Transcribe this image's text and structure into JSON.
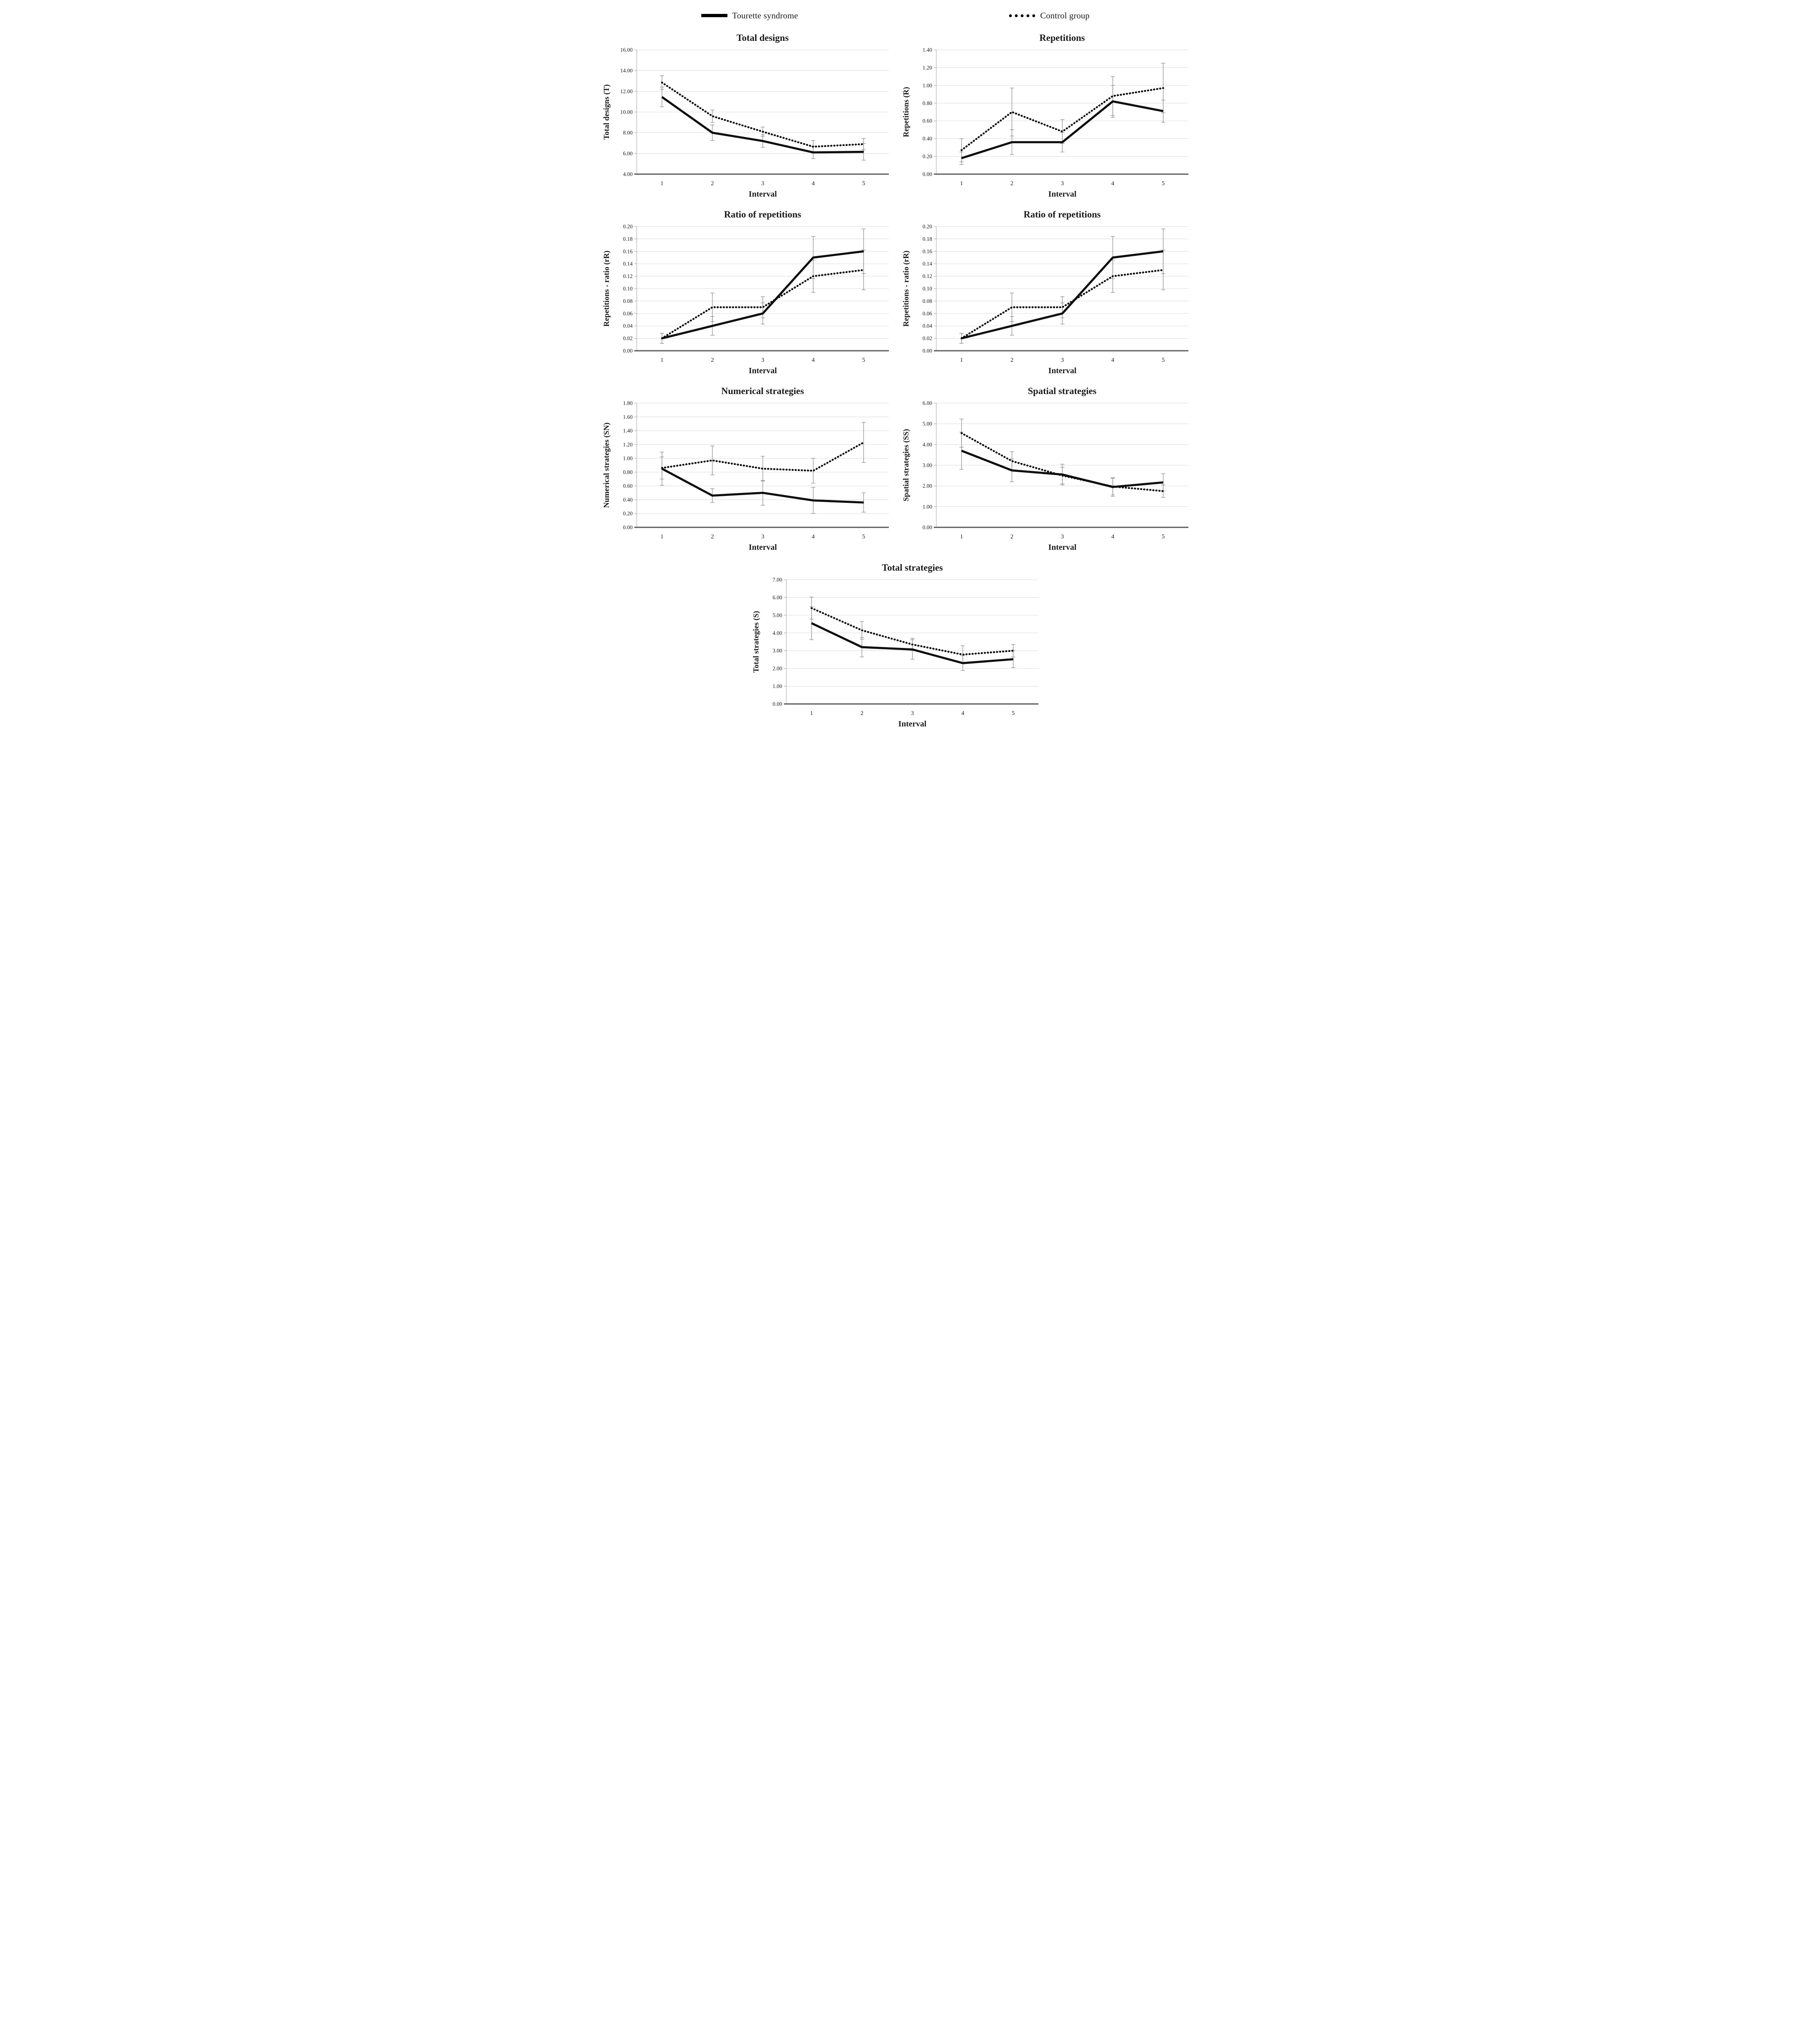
{
  "legend": {
    "items": [
      {
        "label": "Tourette syndrome",
        "style": "solid",
        "color": "#000000"
      },
      {
        "label": "Control group",
        "style": "dotted",
        "color": "#000000"
      }
    ]
  },
  "colors": {
    "line": "#0d0d0d",
    "grid": "#dadada",
    "axis": "#9c9c9c",
    "baseline": "#595959",
    "error": "#8f8f8f",
    "text": "#1a1a1a"
  },
  "chart_data": [
    {
      "type": "line",
      "title": "Total designs",
      "xlabel": "Interval",
      "ylabel": "Total designs (T)",
      "x": [
        1,
        2,
        3,
        4,
        5
      ],
      "ylim": [
        4.0,
        16.0
      ],
      "ytick_step": 2.0,
      "ytick_decimals": 2,
      "grid": true,
      "legend_position": "none",
      "series": [
        {
          "name": "Tourette syndrome",
          "style": "solid",
          "values": [
            11.45,
            8.0,
            7.2,
            6.1,
            6.15
          ],
          "error": [
            0.95,
            0.75,
            0.6,
            0.6,
            0.8
          ]
        },
        {
          "name": "Control group",
          "style": "dotted",
          "values": [
            12.85,
            9.6,
            8.1,
            6.65,
            6.9
          ],
          "error": [
            0.65,
            0.6,
            0.45,
            0.6,
            0.55
          ]
        }
      ]
    },
    {
      "type": "line",
      "title": "Repetitions",
      "xlabel": "Interval",
      "ylabel": "Repetitions (R)",
      "x": [
        1,
        2,
        3,
        4,
        5
      ],
      "ylim": [
        0.0,
        1.4
      ],
      "ytick_step": 0.2,
      "ytick_decimals": 2,
      "grid": true,
      "legend_position": "none",
      "series": [
        {
          "name": "Tourette syndrome",
          "style": "solid",
          "values": [
            0.18,
            0.36,
            0.36,
            0.82,
            0.71
          ],
          "error": [
            0.07,
            0.14,
            0.11,
            0.18,
            0.125
          ]
        },
        {
          "name": "Control group",
          "style": "dotted",
          "values": [
            0.27,
            0.7,
            0.48,
            0.88,
            0.97
          ],
          "error": [
            0.13,
            0.27,
            0.135,
            0.22,
            0.28
          ]
        }
      ]
    },
    {
      "type": "line",
      "title": "Ratio of repetitions",
      "xlabel": "Interval",
      "ylabel": "Repetitions - ratio (rR)",
      "x": [
        1,
        2,
        3,
        4,
        5
      ],
      "ylim": [
        0.0,
        0.2
      ],
      "ytick_step": 0.02,
      "ytick_decimals": 2,
      "grid": true,
      "legend_position": "none",
      "series": [
        {
          "name": "Tourette syndrome",
          "style": "solid",
          "values": [
            0.02,
            0.04,
            0.06,
            0.15,
            0.16
          ],
          "error": [
            0.008,
            0.015,
            0.017,
            0.034,
            0.036
          ]
        },
        {
          "name": "Control group",
          "style": "dotted",
          "values": [
            0.02,
            0.07,
            0.07,
            0.12,
            0.13
          ],
          "error": [
            0.008,
            0.023,
            0.017,
            0.026,
            0.032
          ]
        }
      ]
    },
    {
      "type": "line",
      "title": "Ratio of repetitions",
      "xlabel": "Interval",
      "ylabel": "Repetitions - ratio (rR)",
      "x": [
        1,
        2,
        3,
        4,
        5
      ],
      "ylim": [
        0.0,
        0.2
      ],
      "ytick_step": 0.02,
      "ytick_decimals": 2,
      "grid": true,
      "legend_position": "none",
      "series": [
        {
          "name": "Tourette syndrome",
          "style": "solid",
          "values": [
            0.02,
            0.04,
            0.06,
            0.15,
            0.16
          ],
          "error": [
            0.008,
            0.015,
            0.017,
            0.034,
            0.036
          ]
        },
        {
          "name": "Control group",
          "style": "dotted",
          "values": [
            0.02,
            0.07,
            0.07,
            0.12,
            0.13
          ],
          "error": [
            0.008,
            0.023,
            0.017,
            0.026,
            0.032
          ]
        }
      ]
    },
    {
      "type": "line",
      "title": "Numerical strategies",
      "xlabel": "Interval",
      "ylabel": "Numerical strategies (SN)",
      "x": [
        1,
        2,
        3,
        4,
        5
      ],
      "ylim": [
        0.0,
        1.8
      ],
      "ytick_step": 0.2,
      "ytick_decimals": 2,
      "grid": true,
      "legend_position": "none",
      "series": [
        {
          "name": "Tourette syndrome",
          "style": "solid",
          "values": [
            0.85,
            0.46,
            0.5,
            0.39,
            0.36
          ],
          "error": [
            0.24,
            0.1,
            0.18,
            0.19,
            0.14
          ]
        },
        {
          "name": "Control group",
          "style": "dotted",
          "values": [
            0.86,
            0.97,
            0.85,
            0.82,
            1.23
          ],
          "error": [
            0.16,
            0.21,
            0.18,
            0.18,
            0.29
          ]
        }
      ]
    },
    {
      "type": "line",
      "title": "Spatial strategies",
      "xlabel": "Interval",
      "ylabel": "Spatial strategies (SS)",
      "x": [
        1,
        2,
        3,
        4,
        5
      ],
      "ylim": [
        0.0,
        6.0
      ],
      "ytick_step": 1.0,
      "ytick_decimals": 2,
      "grid": true,
      "legend_position": "none",
      "series": [
        {
          "name": "Tourette syndrome",
          "style": "solid",
          "values": [
            3.7,
            2.75,
            2.55,
            1.95,
            2.17
          ],
          "error": [
            0.9,
            0.55,
            0.5,
            0.45,
            0.42
          ]
        },
        {
          "name": "Control group",
          "style": "dotted",
          "values": [
            4.55,
            3.2,
            2.5,
            1.97,
            1.75
          ],
          "error": [
            0.68,
            0.45,
            0.4,
            0.4,
            0.3
          ]
        }
      ]
    },
    {
      "type": "line",
      "title": "Total strategies",
      "xlabel": "Interval",
      "ylabel": "Total strategies (S)",
      "x": [
        1,
        2,
        3,
        4,
        5
      ],
      "ylim": [
        0.0,
        7.0
      ],
      "ytick_step": 1.0,
      "ytick_decimals": 2,
      "grid": true,
      "legend_position": "none",
      "series": [
        {
          "name": "Tourette syndrome",
          "style": "solid",
          "values": [
            4.55,
            3.2,
            3.07,
            2.3,
            2.52
          ],
          "error": [
            0.93,
            0.55,
            0.55,
            0.42,
            0.47
          ]
        },
        {
          "name": "Control group",
          "style": "dotted",
          "values": [
            5.4,
            4.15,
            3.35,
            2.78,
            3.0
          ],
          "error": [
            0.62,
            0.5,
            0.35,
            0.5,
            0.35
          ]
        }
      ]
    }
  ]
}
